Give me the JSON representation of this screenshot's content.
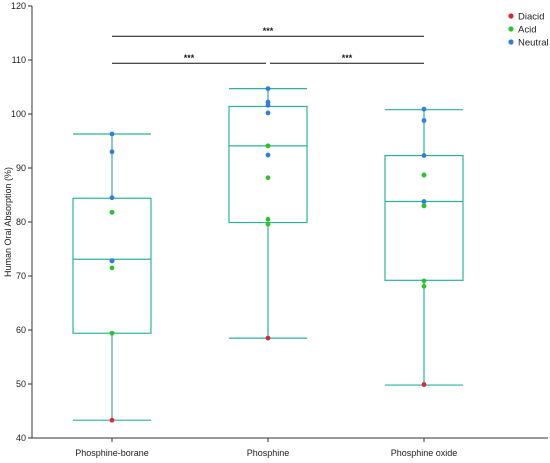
{
  "colors": {
    "box": "#2bb39a",
    "axis": "#333333",
    "bracket": "#111111",
    "Diacid": "#d6283a",
    "Acid": "#2ec32e",
    "Neutral": "#2f7de0"
  },
  "chart_data": {
    "type": "box",
    "title": "",
    "xlabel": "",
    "ylabel": "Human Oral Absorption (%)",
    "ylim": [
      40,
      120
    ],
    "yticks": [
      40,
      50,
      60,
      70,
      80,
      90,
      100,
      110,
      120
    ],
    "categories": [
      "Phosphine-borane",
      "Phosphine",
      "Phosphine oxide"
    ],
    "legend": {
      "position": "top-right",
      "entries": [
        "Diacid",
        "Acid",
        "Neutral"
      ]
    },
    "boxes": [
      {
        "category": "Phosphine-borane",
        "min": 43.3,
        "q1": 59.4,
        "median": 73.1,
        "q3": 84.4,
        "max": 96.3
      },
      {
        "category": "Phosphine",
        "min": 58.5,
        "q1": 79.9,
        "median": 94.1,
        "q3": 101.4,
        "max": 104.7
      },
      {
        "category": "Phosphine oxide",
        "min": 49.8,
        "q1": 69.2,
        "median": 83.8,
        "q3": 92.3,
        "max": 100.8
      }
    ],
    "points": [
      {
        "category": "Phosphine-borane",
        "group": "Neutral",
        "value": 96.3
      },
      {
        "category": "Phosphine-borane",
        "group": "Neutral",
        "value": 93.0
      },
      {
        "category": "Phosphine-borane",
        "group": "Neutral",
        "value": 84.5
      },
      {
        "category": "Phosphine-borane",
        "group": "Acid",
        "value": 81.8
      },
      {
        "category": "Phosphine-borane",
        "group": "Acid",
        "value": 81.8
      },
      {
        "category": "Phosphine-borane",
        "group": "Neutral",
        "value": 72.8
      },
      {
        "category": "Phosphine-borane",
        "group": "Neutral",
        "value": 72.8
      },
      {
        "category": "Phosphine-borane",
        "group": "Acid",
        "value": 71.5
      },
      {
        "category": "Phosphine-borane",
        "group": "Acid",
        "value": 59.4
      },
      {
        "category": "Phosphine-borane",
        "group": "Acid",
        "value": 59.4
      },
      {
        "category": "Phosphine-borane",
        "group": "Diacid",
        "value": 43.3
      },
      {
        "category": "Phosphine",
        "group": "Neutral",
        "value": 104.7
      },
      {
        "category": "Phosphine",
        "group": "Neutral",
        "value": 102.2
      },
      {
        "category": "Phosphine",
        "group": "Neutral",
        "value": 101.6
      },
      {
        "category": "Phosphine",
        "group": "Neutral",
        "value": 100.2
      },
      {
        "category": "Phosphine",
        "group": "Acid",
        "value": 94.1
      },
      {
        "category": "Phosphine",
        "group": "Acid",
        "value": 94.1
      },
      {
        "category": "Phosphine",
        "group": "Neutral",
        "value": 92.4
      },
      {
        "category": "Phosphine",
        "group": "Acid",
        "value": 88.2
      },
      {
        "category": "Phosphine",
        "group": "Acid",
        "value": 80.5
      },
      {
        "category": "Phosphine",
        "group": "Acid",
        "value": 79.6
      },
      {
        "category": "Phosphine",
        "group": "Diacid",
        "value": 58.5
      },
      {
        "category": "Phosphine oxide",
        "group": "Neutral",
        "value": 100.9
      },
      {
        "category": "Phosphine oxide",
        "group": "Neutral",
        "value": 98.8
      },
      {
        "category": "Phosphine oxide",
        "group": "Neutral",
        "value": 92.3
      },
      {
        "category": "Phosphine oxide",
        "group": "Acid",
        "value": 88.7
      },
      {
        "category": "Phosphine oxide",
        "group": "Acid",
        "value": 88.7
      },
      {
        "category": "Phosphine oxide",
        "group": "Neutral",
        "value": 83.8
      },
      {
        "category": "Phosphine oxide",
        "group": "Acid",
        "value": 83.0
      },
      {
        "category": "Phosphine oxide",
        "group": "Acid",
        "value": 83.0
      },
      {
        "category": "Phosphine oxide",
        "group": "Acid",
        "value": 69.1
      },
      {
        "category": "Phosphine oxide",
        "group": "Acid",
        "value": 68.1
      },
      {
        "category": "Phosphine oxide",
        "group": "Diacid",
        "value": 49.9
      }
    ],
    "significance": [
      {
        "from": "Phosphine-borane",
        "to": "Phosphine oxide",
        "value": 114.4,
        "label": "***"
      },
      {
        "from": "Phosphine-borane",
        "to": "Phosphine",
        "value": 109.4,
        "label": "***"
      },
      {
        "from": "Phosphine",
        "to": "Phosphine oxide",
        "value": 109.4,
        "label": "***"
      }
    ]
  }
}
